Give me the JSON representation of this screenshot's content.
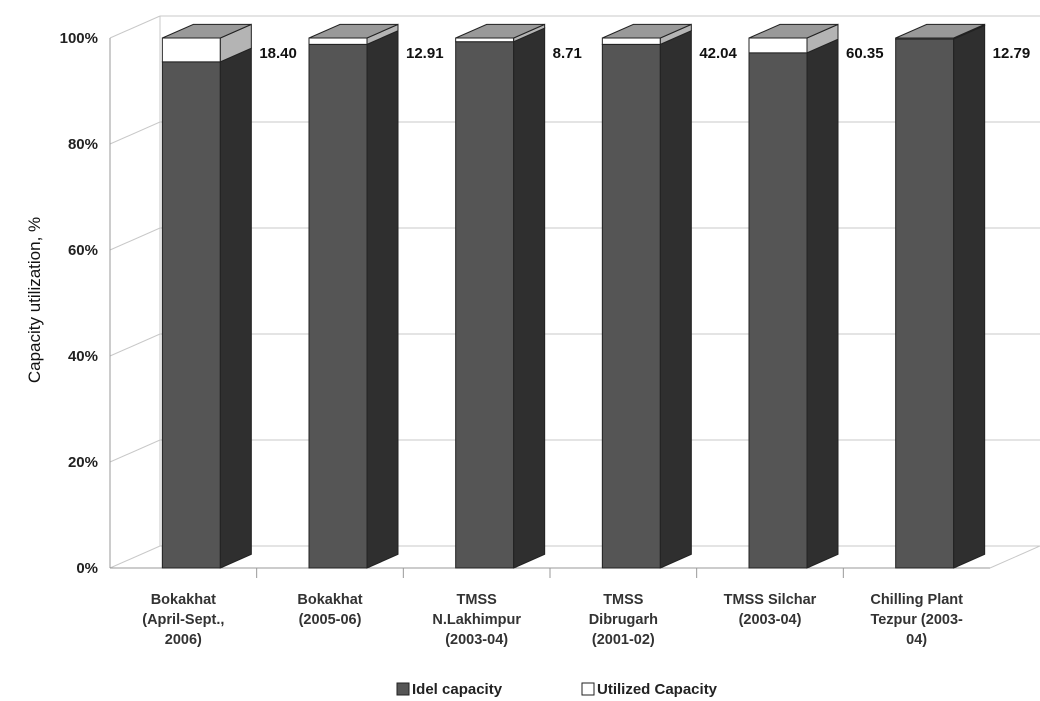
{
  "chart_data": {
    "type": "bar",
    "stacked": true,
    "percent_stacked": true,
    "three_d": true,
    "title": "",
    "xlabel": "",
    "ylabel": "Capacity utilization, %",
    "ylim": [
      0,
      100
    ],
    "yticks": [
      "0%",
      "20%",
      "40%",
      "60%",
      "80%",
      "100%"
    ],
    "grid": true,
    "legend_position": "bottom",
    "categories": [
      [
        "Bokakhat",
        "(April-Sept.,",
        "2006)"
      ],
      [
        "Bokakhat",
        "(2005-06)"
      ],
      [
        "TMSS",
        "N.Lakhimpur",
        "(2003-04)"
      ],
      [
        "TMSS",
        "Dibrugarh",
        "(2001-02)"
      ],
      [
        "TMSS Silchar",
        "(2003-04)"
      ],
      [
        "Chilling Plant",
        "Tezpur (2003-",
        "04)"
      ]
    ],
    "series": [
      {
        "name": "Idel capacity",
        "color": "#555555",
        "values": [
          95.5,
          98.8,
          99.3,
          98.8,
          97.2,
          99.8
        ]
      },
      {
        "name": "Utilized Capacity",
        "color": "#ffffff",
        "values": [
          4.5,
          1.2,
          0.7,
          1.2,
          2.8,
          0.2
        ]
      }
    ],
    "data_labels": [
      "18.40",
      "12.91",
      "8.71",
      "42.04",
      "60.35",
      "12.79"
    ]
  }
}
